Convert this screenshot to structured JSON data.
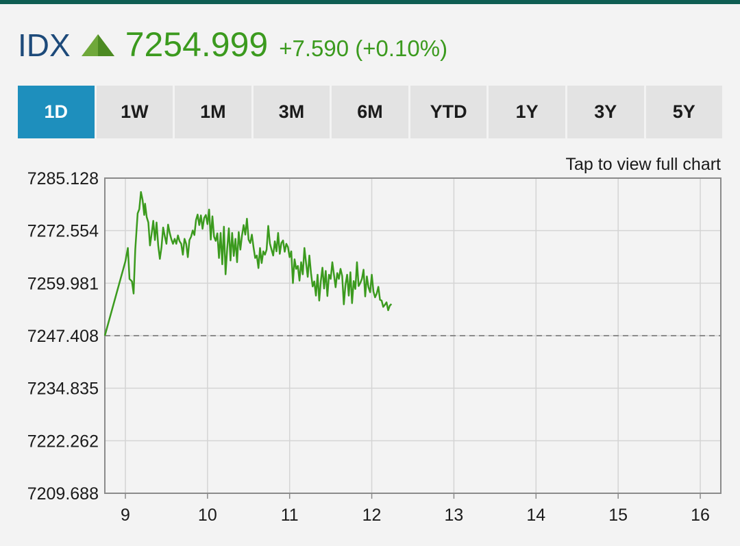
{
  "header": {
    "ticker": "IDX",
    "trend_icon": "triangle-up-icon",
    "price": "7254.999",
    "change": "+7.590 (+0.10%)"
  },
  "tabs": [
    {
      "label": "1D",
      "active": true
    },
    {
      "label": "1W",
      "active": false
    },
    {
      "label": "1M",
      "active": false
    },
    {
      "label": "3M",
      "active": false
    },
    {
      "label": "6M",
      "active": false
    },
    {
      "label": "YTD",
      "active": false
    },
    {
      "label": "1Y",
      "active": false
    },
    {
      "label": "3Y",
      "active": false
    },
    {
      "label": "5Y",
      "active": false
    }
  ],
  "hint": "Tap to view full chart",
  "colors": {
    "accent": "#1e8fbd",
    "up": "#3b9a1e",
    "ticker": "#1d4a7a",
    "topbar": "#0e5d52"
  },
  "chart_data": {
    "type": "line",
    "xlim": [
      8.75,
      16.25
    ],
    "ylim": [
      7209.688,
      7285.128
    ],
    "yticks": [
      "7285.128",
      "7272.554",
      "7259.981",
      "7247.408",
      "7234.835",
      "7222.262",
      "7209.688"
    ],
    "xticks": [
      "9",
      "10",
      "11",
      "12",
      "13",
      "14",
      "15",
      "16"
    ],
    "reference_line": 7247.408,
    "grid": true,
    "series": [
      {
        "color": "#3b9a1e",
        "points": [
          [
            8.75,
            7247.4
          ],
          [
            9.0,
            7265.2
          ],
          [
            9.03,
            7268.4
          ],
          [
            9.05,
            7261.0
          ],
          [
            9.08,
            7260.4
          ],
          [
            9.1,
            7257.5
          ],
          [
            9.12,
            7268.0
          ],
          [
            9.15,
            7276.7
          ],
          [
            9.17,
            7277.7
          ],
          [
            9.19,
            7281.8
          ],
          [
            9.21,
            7279.9
          ],
          [
            9.23,
            7276.3
          ],
          [
            9.24,
            7279.0
          ],
          [
            9.26,
            7275.8
          ],
          [
            9.28,
            7274.5
          ],
          [
            9.3,
            7269.0
          ],
          [
            9.32,
            7271.8
          ],
          [
            9.34,
            7274.9
          ],
          [
            9.36,
            7270.3
          ],
          [
            9.38,
            7274.5
          ],
          [
            9.4,
            7269.0
          ],
          [
            9.42,
            7265.8
          ],
          [
            9.44,
            7268.6
          ],
          [
            9.46,
            7273.3
          ],
          [
            9.48,
            7271.2
          ],
          [
            9.5,
            7269.4
          ],
          [
            9.52,
            7274.0
          ],
          [
            9.54,
            7272.0
          ],
          [
            9.56,
            7270.5
          ],
          [
            9.58,
            7269.4
          ],
          [
            9.6,
            7270.6
          ],
          [
            9.62,
            7269.4
          ],
          [
            9.64,
            7271.4
          ],
          [
            9.66,
            7270.0
          ],
          [
            9.68,
            7269.4
          ],
          [
            9.7,
            7266.8
          ],
          [
            9.72,
            7270.6
          ],
          [
            9.74,
            7269.4
          ],
          [
            9.76,
            7266.2
          ],
          [
            9.78,
            7270.3
          ],
          [
            9.8,
            7271.1
          ],
          [
            9.82,
            7272.6
          ],
          [
            9.84,
            7271.5
          ],
          [
            9.86,
            7275.1
          ],
          [
            9.88,
            7276.4
          ],
          [
            9.9,
            7273.9
          ],
          [
            9.92,
            7276.2
          ],
          [
            9.94,
            7273.0
          ],
          [
            9.96,
            7275.6
          ],
          [
            9.98,
            7276.3
          ],
          [
            10.0,
            7274.1
          ],
          [
            10.02,
            7277.6
          ],
          [
            10.04,
            7270.4
          ],
          [
            10.06,
            7276.0
          ],
          [
            10.08,
            7271.1
          ],
          [
            10.1,
            7270.1
          ],
          [
            10.12,
            7271.9
          ],
          [
            10.14,
            7266.0
          ],
          [
            10.16,
            7272.0
          ],
          [
            10.18,
            7264.5
          ],
          [
            10.2,
            7273.5
          ],
          [
            10.22,
            7262.1
          ],
          [
            10.24,
            7268.3
          ],
          [
            10.26,
            7273.1
          ],
          [
            10.28,
            7265.4
          ],
          [
            10.3,
            7272.0
          ],
          [
            10.32,
            7266.5
          ],
          [
            10.34,
            7270.6
          ],
          [
            10.36,
            7265.0
          ],
          [
            10.38,
            7272.2
          ],
          [
            10.4,
            7268.0
          ],
          [
            10.42,
            7271.4
          ],
          [
            10.44,
            7273.9
          ],
          [
            10.46,
            7271.6
          ],
          [
            10.48,
            7275.4
          ],
          [
            10.5,
            7270.4
          ],
          [
            10.52,
            7269.6
          ],
          [
            10.54,
            7271.6
          ],
          [
            10.56,
            7268.6
          ],
          [
            10.58,
            7266.0
          ],
          [
            10.6,
            7266.6
          ],
          [
            10.62,
            7263.6
          ],
          [
            10.64,
            7268.4
          ],
          [
            10.66,
            7264.8
          ],
          [
            10.68,
            7267.6
          ],
          [
            10.7,
            7266.8
          ],
          [
            10.72,
            7268.0
          ],
          [
            10.74,
            7273.7
          ],
          [
            10.76,
            7269.5
          ],
          [
            10.78,
            7268.0
          ],
          [
            10.8,
            7266.6
          ],
          [
            10.82,
            7270.0
          ],
          [
            10.84,
            7267.6
          ],
          [
            10.86,
            7272.0
          ],
          [
            10.88,
            7267.0
          ],
          [
            10.9,
            7269.6
          ],
          [
            10.92,
            7270.2
          ],
          [
            10.94,
            7267.5
          ],
          [
            10.96,
            7269.4
          ],
          [
            10.98,
            7268.6
          ],
          [
            11.0,
            7266.2
          ],
          [
            11.02,
            7267.6
          ],
          [
            11.04,
            7260.0
          ],
          [
            11.06,
            7265.7
          ],
          [
            11.08,
            7263.4
          ],
          [
            11.1,
            7264.1
          ],
          [
            11.12,
            7260.6
          ],
          [
            11.14,
            7265.0
          ],
          [
            11.16,
            7262.1
          ],
          [
            11.18,
            7268.4
          ],
          [
            11.2,
            7264.8
          ],
          [
            11.22,
            7261.5
          ],
          [
            11.24,
            7266.6
          ],
          [
            11.26,
            7262.4
          ],
          [
            11.28,
            7259.2
          ],
          [
            11.3,
            7260.4
          ],
          [
            11.32,
            7257.0
          ],
          [
            11.34,
            7262.0
          ],
          [
            11.36,
            7255.8
          ],
          [
            11.38,
            7260.4
          ],
          [
            11.4,
            7263.7
          ],
          [
            11.42,
            7258.7
          ],
          [
            11.44,
            7262.9
          ],
          [
            11.46,
            7256.9
          ],
          [
            11.48,
            7262.0
          ],
          [
            11.5,
            7261.0
          ],
          [
            11.52,
            7265.0
          ],
          [
            11.54,
            7262.0
          ],
          [
            11.56,
            7259.0
          ],
          [
            11.58,
            7262.4
          ],
          [
            11.6,
            7261.0
          ],
          [
            11.62,
            7263.4
          ],
          [
            11.64,
            7261.7
          ],
          [
            11.66,
            7254.9
          ],
          [
            11.68,
            7259.6
          ],
          [
            11.7,
            7262.0
          ],
          [
            11.72,
            7257.0
          ],
          [
            11.74,
            7262.6
          ],
          [
            11.76,
            7255.2
          ],
          [
            11.78,
            7260.5
          ],
          [
            11.8,
            7258.6
          ],
          [
            11.82,
            7265.0
          ],
          [
            11.84,
            7259.3
          ],
          [
            11.86,
            7260.0
          ],
          [
            11.88,
            7261.0
          ],
          [
            11.9,
            7263.2
          ],
          [
            11.92,
            7256.8
          ],
          [
            11.94,
            7261.6
          ],
          [
            11.96,
            7259.0
          ],
          [
            11.98,
            7257.8
          ],
          [
            12.0,
            7262.0
          ],
          [
            12.02,
            7258.0
          ],
          [
            12.04,
            7256.6
          ],
          [
            12.06,
            7257.5
          ],
          [
            12.08,
            7259.1
          ],
          [
            12.1,
            7256.0
          ],
          [
            12.12,
            7255.8
          ],
          [
            12.14,
            7254.3
          ],
          [
            12.16,
            7254.8
          ],
          [
            12.18,
            7255.4
          ],
          [
            12.2,
            7253.5
          ],
          [
            12.22,
            7254.6
          ],
          [
            12.24,
            7254.999
          ]
        ]
      }
    ]
  }
}
